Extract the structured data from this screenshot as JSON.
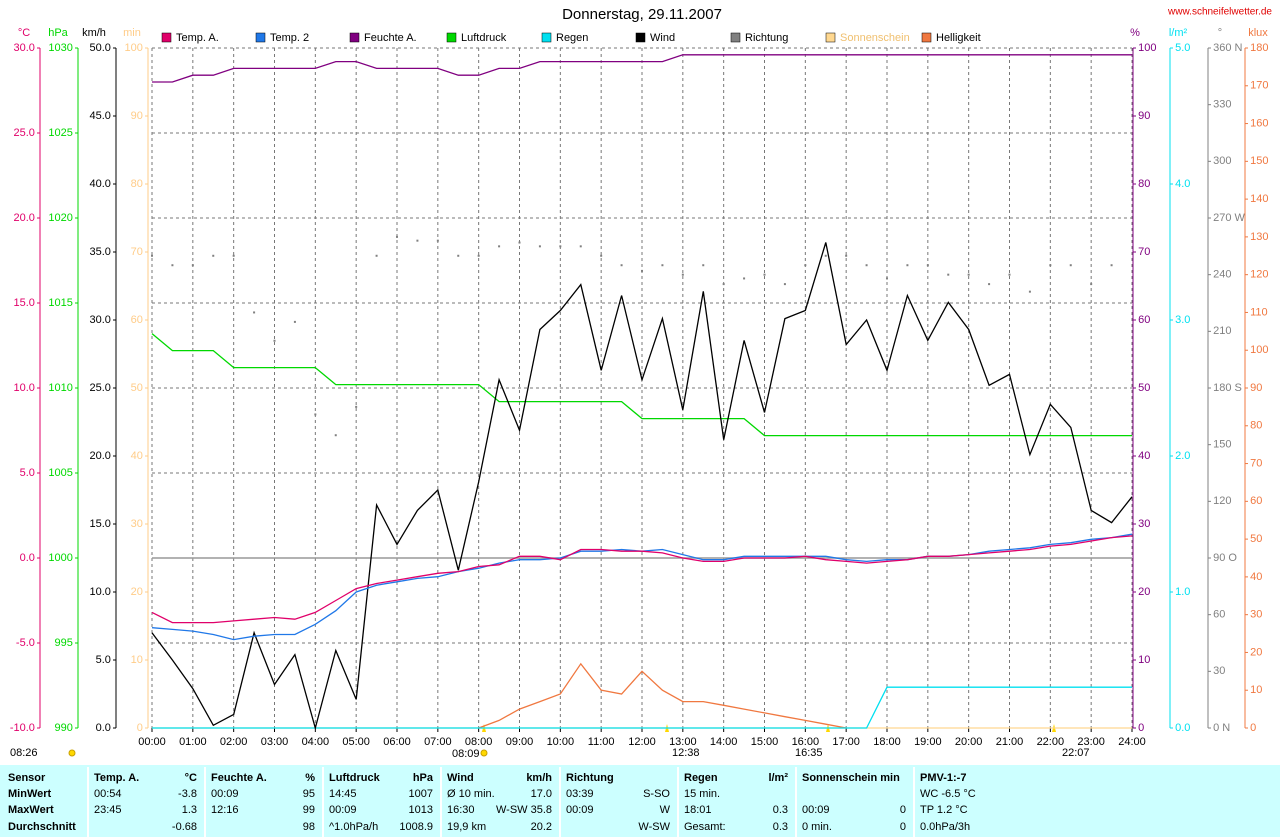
{
  "chart_data": {
    "type": "line",
    "title": "Donnerstag, 29.11.2007",
    "source": "www.schneifelwetter.de",
    "annotations": [
      "08:26",
      "08:09",
      "12:38",
      "16:35",
      "22:07"
    ],
    "grid": true,
    "xlim": [
      0,
      24
    ],
    "xticks": [
      {
        "value": 0,
        "label": "00:00"
      },
      {
        "value": 1,
        "label": "01:00"
      },
      {
        "value": 2,
        "label": "02:00"
      },
      {
        "value": 3,
        "label": "03:00"
      },
      {
        "value": 4,
        "label": "04:00"
      },
      {
        "value": 5,
        "label": "05:00"
      },
      {
        "value": 6,
        "label": "06:00"
      },
      {
        "value": 7,
        "label": "07:00"
      },
      {
        "value": 8,
        "label": "08:00"
      },
      {
        "value": 9,
        "label": "09:00"
      },
      {
        "value": 10,
        "label": "10:00"
      },
      {
        "value": 11,
        "label": "11:00"
      },
      {
        "value": 12,
        "label": "12:00"
      },
      {
        "value": 13,
        "label": "13:00"
      },
      {
        "value": 14,
        "label": "14:00"
      },
      {
        "value": 15,
        "label": "15:00"
      },
      {
        "value": 16,
        "label": "16:00"
      },
      {
        "value": 17,
        "label": "17:00"
      },
      {
        "value": 18,
        "label": "18:00"
      },
      {
        "value": 19,
        "label": "19:00"
      },
      {
        "value": 20,
        "label": "20:00"
      },
      {
        "value": 21,
        "label": "21:00"
      },
      {
        "value": 22,
        "label": "22:00"
      },
      {
        "value": 23,
        "label": "23:00"
      },
      {
        "value": 24,
        "label": "24:00"
      }
    ],
    "x": [
      0,
      0.5,
      1,
      1.5,
      2,
      2.5,
      3,
      3.5,
      4,
      4.5,
      5,
      5.5,
      6,
      6.5,
      7,
      7.5,
      8,
      8.5,
      9,
      9.5,
      10,
      10.5,
      11,
      11.5,
      12,
      12.5,
      13,
      13.5,
      14,
      14.5,
      15,
      15.5,
      16,
      16.5,
      17,
      17.5,
      18,
      18.5,
      19,
      19.5,
      20,
      20.5,
      21,
      21.5,
      22,
      22.5,
      23,
      23.5,
      24
    ],
    "ylabel": "km/h",
    "ylim": [
      0,
      50
    ],
    "yticks": [
      {
        "value": 0,
        "label": "0.0"
      },
      {
        "value": 5,
        "label": "5.0"
      },
      {
        "value": 10,
        "label": "10.0"
      },
      {
        "value": 15,
        "label": "15.0"
      },
      {
        "value": 20,
        "label": "20.0"
      },
      {
        "value": 25,
        "label": "25.0"
      },
      {
        "value": 30,
        "label": "30.0"
      },
      {
        "value": 35,
        "label": "35.0"
      },
      {
        "value": 40,
        "label": "40.0"
      },
      {
        "value": 45,
        "label": "45.0"
      },
      {
        "value": 50,
        "label": "50.0"
      }
    ],
    "y2label": "°C",
    "y2lim": [
      -10,
      30
    ],
    "y2ticks": [
      {
        "value": -10,
        "label": "-10.0"
      },
      {
        "value": -5,
        "label": "-5.0"
      },
      {
        "value": 0,
        "label": "0.0"
      },
      {
        "value": 5,
        "label": "5.0"
      },
      {
        "value": 10,
        "label": "10.0"
      },
      {
        "value": 15,
        "label": "15.0"
      },
      {
        "value": 20,
        "label": "20.0"
      },
      {
        "value": 25,
        "label": "25.0"
      },
      {
        "value": 30,
        "label": "30.0"
      }
    ],
    "y3label": "hPa",
    "y3lim": [
      990,
      1030
    ],
    "y3ticks": [
      990,
      995,
      1000,
      1005,
      1010,
      1015,
      1020,
      1025,
      1030
    ],
    "y4label": "min",
    "y4lim": [
      0,
      100
    ],
    "y4ticks": [
      0,
      10,
      20,
      30,
      40,
      50,
      60,
      70,
      80,
      90,
      100
    ],
    "y5label": "%",
    "y5lim": [
      0,
      100
    ],
    "y5ticks": [
      0,
      10,
      20,
      30,
      40,
      50,
      60,
      70,
      80,
      90,
      100
    ],
    "y6label": "l/m²",
    "y6lim": [
      0,
      5
    ],
    "y6ticks": [
      {
        "value": 0,
        "label": "0.0"
      },
      {
        "value": 1,
        "label": "1.0"
      },
      {
        "value": 2,
        "label": "2.0"
      },
      {
        "value": 3,
        "label": "3.0"
      },
      {
        "value": 4,
        "label": "4.0"
      },
      {
        "value": 5,
        "label": "5.0"
      }
    ],
    "y7label": "°",
    "y7lim": [
      0,
      360
    ],
    "y7ticks": [
      {
        "value": 0,
        "label": "0 N"
      },
      30,
      60,
      {
        "value": 90,
        "label": "90 O"
      },
      120,
      150,
      {
        "value": 180,
        "label": "180 S"
      },
      210,
      240,
      {
        "value": 270,
        "label": "270 W"
      },
      300,
      330,
      {
        "value": 360,
        "label": "360 N"
      }
    ],
    "y8label": "klux",
    "y8lim": [
      0,
      180
    ],
    "y8ticks": [
      0,
      10,
      20,
      30,
      40,
      50,
      60,
      70,
      80,
      90,
      100,
      110,
      120,
      130,
      140,
      150,
      160,
      170,
      180
    ],
    "series": [
      {
        "name": "Temp. A.",
        "color": "#e0006a",
        "axis": "y2",
        "values": [
          -3.2,
          -3.8,
          -3.8,
          -3.8,
          -3.7,
          -3.6,
          -3.5,
          -3.6,
          -3.2,
          -2.5,
          -1.8,
          -1.5,
          -1.3,
          -1.1,
          -0.9,
          -0.8,
          -0.5,
          -0.4,
          0.1,
          0.1,
          -0.1,
          0.5,
          0.5,
          0.4,
          0.4,
          0.3,
          0,
          -0.2,
          -0.2,
          0,
          0,
          0,
          0.1,
          -0.1,
          -0.2,
          -0.3,
          -0.2,
          -0.1,
          0.1,
          0.1,
          0.2,
          0.3,
          0.4,
          0.5,
          0.7,
          0.8,
          1.0,
          1.2,
          1.3
        ]
      },
      {
        "name": "Temp. 2",
        "color": "#2078e8",
        "axis": "y2",
        "values": [
          -4.1,
          -4.2,
          -4.3,
          -4.5,
          -4.8,
          -4.6,
          -4.5,
          -4.5,
          -3.9,
          -3.1,
          -2.0,
          -1.6,
          -1.4,
          -1.2,
          -1.1,
          -0.8,
          -0.6,
          -0.3,
          -0.1,
          -0.1,
          0,
          0.4,
          0.4,
          0.5,
          0.4,
          0.5,
          0.2,
          -0.1,
          -0.1,
          0.1,
          0.1,
          0.1,
          0.1,
          0.1,
          -0.1,
          -0.2,
          -0.1,
          -0.1,
          0.1,
          0.1,
          0.2,
          0.4,
          0.5,
          0.6,
          0.8,
          0.9,
          1.1,
          1.2,
          1.4
        ]
      },
      {
        "name": "Feuchte A.",
        "color": "#800080",
        "axis": "y5",
        "values": [
          95,
          95,
          96,
          96,
          97,
          97,
          97,
          97,
          97,
          98,
          98,
          97,
          97,
          97,
          97,
          96,
          96,
          97,
          97,
          98,
          98,
          98,
          98,
          98,
          98,
          98,
          99,
          99,
          99,
          99,
          99,
          99,
          99,
          99,
          99,
          99,
          99,
          99,
          99,
          99,
          99,
          99,
          99,
          99,
          99,
          99,
          99,
          99,
          99
        ]
      },
      {
        "name": "Luftdruck",
        "color": "#00d800",
        "axis": "y3",
        "values": [
          1013.2,
          1012.2,
          1012.2,
          1012.2,
          1011.2,
          1011.2,
          1011.2,
          1011.2,
          1011.2,
          1010.2,
          1010.2,
          1010.2,
          1010.2,
          1010.2,
          1010.2,
          1010.2,
          1010.2,
          1009.2,
          1009.2,
          1009.2,
          1009.2,
          1009.2,
          1009.2,
          1009.2,
          1008.2,
          1008.2,
          1008.2,
          1008.2,
          1008.2,
          1008.2,
          1007.2,
          1007.2,
          1007.2,
          1007.2,
          1007.2,
          1007.2,
          1007.2,
          1007.2,
          1007.2,
          1007.2,
          1007.2,
          1007.2,
          1007.2,
          1007.2,
          1007.2,
          1007.2,
          1007.2,
          1007.2,
          1007.2
        ]
      },
      {
        "name": "Regen",
        "color": "#00e0f0",
        "axis": "y6",
        "values": [
          0,
          0,
          0,
          0,
          0,
          0,
          0,
          0,
          0,
          0,
          0,
          0,
          0,
          0,
          0,
          0,
          0,
          0,
          0,
          0,
          0,
          0,
          0,
          0,
          0,
          0,
          0,
          0,
          0,
          0,
          0,
          0,
          0,
          0,
          0,
          0,
          0.3,
          0.3,
          0.3,
          0.3,
          0.3,
          0.3,
          0.3,
          0.3,
          0.3,
          0.3,
          0.3,
          0.3,
          0.3
        ]
      },
      {
        "name": "Wind",
        "color": "#000000",
        "axis": "y",
        "values": [
          7.0,
          5.0,
          2.9,
          0.2,
          1.0,
          7.0,
          3.2,
          5.4,
          0,
          5.7,
          2.1,
          16.4,
          13.5,
          16.0,
          17.5,
          11.6,
          18.1,
          25.6,
          21.9,
          29.3,
          30.7,
          32.6,
          26.3,
          31.8,
          25.6,
          30.1,
          23.4,
          32.1,
          21.2,
          28.5,
          23.2,
          30.1,
          30.7,
          35.7,
          28.2,
          30.0,
          26.3,
          31.8,
          28.5,
          31.3,
          29.3,
          25.2,
          26.0,
          20.1,
          23.8,
          22.1,
          16.0,
          15.1,
          17.0
        ]
      },
      {
        "name": "Richtung",
        "color": "#808080",
        "axis": "y7",
        "style": "dots",
        "values": [
          250,
          245,
          245,
          250,
          250,
          220,
          205,
          215,
          166,
          155,
          170,
          250,
          260,
          258,
          258,
          250,
          250,
          255,
          257,
          255,
          255,
          255,
          250,
          245,
          242,
          245,
          240,
          245,
          235,
          238,
          240,
          235,
          245,
          250,
          250,
          245,
          238,
          245,
          245,
          240,
          240,
          235,
          240,
          231,
          245,
          245,
          235,
          245,
          null
        ]
      },
      {
        "name": "Sonnenschein",
        "color": "#ffd890",
        "axis": "y4",
        "values": [
          0,
          0,
          0,
          0,
          0,
          0,
          0,
          0,
          0,
          0,
          0,
          0,
          0,
          0,
          0,
          0,
          0,
          0,
          0,
          0,
          0,
          0,
          0,
          0,
          0,
          0,
          0,
          0,
          0,
          0,
          0,
          0,
          0,
          0,
          0,
          0,
          0,
          0,
          0,
          0,
          0,
          0,
          0,
          0,
          0,
          0,
          0,
          0,
          0
        ]
      },
      {
        "name": "Helligkeit",
        "color": "#f07840",
        "axis": "y8",
        "values": [
          null,
          null,
          null,
          null,
          null,
          null,
          null,
          null,
          null,
          null,
          null,
          null,
          null,
          null,
          null,
          null,
          0,
          2,
          5,
          7,
          9,
          17,
          10,
          9,
          15,
          10,
          7,
          7,
          6,
          5,
          4,
          3,
          2,
          1,
          0,
          null,
          null,
          null,
          null,
          null,
          null,
          null,
          null,
          null,
          null,
          null,
          null,
          null,
          null
        ]
      }
    ]
  },
  "table": {
    "rowlabels": [
      "Sensor",
      "MinWert",
      "MaxWert",
      "Durchschnitt"
    ],
    "columns": [
      {
        "title": "Temp. A.",
        "unit": "°C",
        "rows": [
          {
            "left": "00:54",
            "right": "-3.8"
          },
          {
            "left": "23:45",
            "right": "1.3"
          },
          {
            "right": "-0.68"
          }
        ]
      },
      {
        "title": "Feuchte A.",
        "unit": "%",
        "rows": [
          {
            "left": "00:09",
            "right": "95"
          },
          {
            "left": "12:16",
            "right": "99"
          },
          {
            "right": "98"
          }
        ]
      },
      {
        "title": "Luftdruck",
        "unit": "hPa",
        "rows": [
          {
            "left": "14:45",
            "right": "1007"
          },
          {
            "left": "00:09",
            "right": "1013"
          },
          {
            "left": "^1.0hPa/h",
            "right": "1008.9"
          }
        ]
      },
      {
        "title": "Wind",
        "unit": "km/h",
        "rows": [
          {
            "left": "Ø 10 min.",
            "right": "17.0"
          },
          {
            "left": "16:30",
            "right": "W-SW 35.8"
          },
          {
            "left": "19,9 km",
            "right": "20.2"
          }
        ]
      },
      {
        "title": "Richtung",
        "rows": [
          {
            "left": "03:39",
            "right": "S-SO"
          },
          {
            "left": "00:09",
            "right": "W"
          },
          {
            "right": "W-SW"
          }
        ]
      },
      {
        "title": "Regen",
        "unit": "l/m²",
        "rows": [
          {
            "left": "15 min."
          },
          {
            "left": "18:01",
            "right": "0.3"
          },
          {
            "left": "Gesamt:",
            "right": "0.3"
          }
        ]
      },
      {
        "title": "Sonnenschein min",
        "rows": [
          {},
          {
            "left": "00:09",
            "right": "0"
          },
          {
            "left": "0 min.",
            "right": "0"
          }
        ]
      },
      {
        "title": "PMV-1:-7",
        "rows": [
          {
            "left": "WC -6.5 °C"
          },
          {
            "left": "TP 1.2 °C"
          },
          {
            "left": "0.0hPa/3h"
          }
        ]
      }
    ]
  }
}
